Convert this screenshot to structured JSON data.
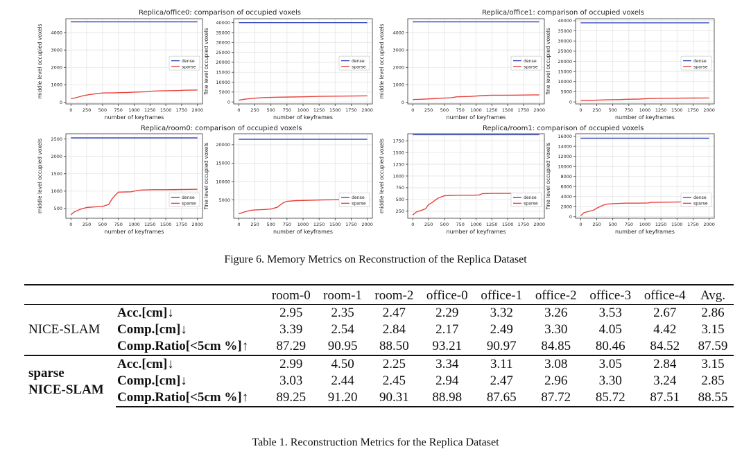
{
  "figure": {
    "caption": "Figure 6. Memory Metrics on Reconstruction of the Replica Dataset",
    "xlabel": "number of keyframes",
    "legend": {
      "dense": "dense",
      "sparse": "sparse"
    },
    "colors": {
      "dense": "#3b4cc0",
      "sparse": "#e8413b"
    },
    "panel_titles": [
      "Replica/office0: comparison of occupied voxels",
      "Replica/office1: comparison of occupied voxels",
      "Replica/room0: comparison of occupied voxels",
      "Replica/room1: comparison of occupied voxels"
    ]
  },
  "chart_data": [
    {
      "type": "line",
      "panel": "office0",
      "ylabel": "middle level occupied voxels",
      "xlim": [
        -80,
        2080
      ],
      "ylim": [
        -100,
        4800
      ],
      "xticks": [
        0,
        250,
        500,
        750,
        1000,
        1250,
        1500,
        1750,
        2000
      ],
      "yticks": [
        0,
        1000,
        2000,
        3000,
        4000
      ],
      "legend_position": "center-right",
      "grid": true,
      "series": [
        {
          "name": "dense",
          "x": [
            0,
            2000
          ],
          "y": [
            4620,
            4620
          ]
        },
        {
          "name": "sparse",
          "x": [
            0,
            80,
            200,
            300,
            420,
            500,
            700,
            900,
            1000,
            1200,
            1300,
            1500,
            1700,
            1800,
            2000
          ],
          "y": [
            200,
            260,
            380,
            440,
            500,
            530,
            540,
            560,
            580,
            600,
            640,
            660,
            670,
            690,
            700
          ]
        }
      ]
    },
    {
      "type": "line",
      "panel": "office0",
      "ylabel": "fine level occupied voxels",
      "xlim": [
        -80,
        2080
      ],
      "ylim": [
        -1000,
        42000
      ],
      "xticks": [
        0,
        250,
        500,
        750,
        1000,
        1250,
        1500,
        1750,
        2000
      ],
      "yticks": [
        0,
        5000,
        10000,
        15000,
        20000,
        25000,
        30000,
        35000,
        40000
      ],
      "legend_position": "center-right",
      "grid": true,
      "series": [
        {
          "name": "dense",
          "x": [
            0,
            2000
          ],
          "y": [
            40000,
            40000
          ]
        },
        {
          "name": "sparse",
          "x": [
            0,
            100,
            250,
            400,
            600,
            800,
            1000,
            1250,
            1500,
            1750,
            2000
          ],
          "y": [
            900,
            1400,
            1900,
            2200,
            2400,
            2500,
            2600,
            2800,
            2900,
            3000,
            3100
          ]
        }
      ]
    },
    {
      "type": "line",
      "panel": "office1",
      "ylabel": "middle level occupied voxels",
      "xlim": [
        -80,
        2080
      ],
      "ylim": [
        -100,
        4800
      ],
      "xticks": [
        0,
        250,
        500,
        750,
        1000,
        1250,
        1500,
        1750,
        2000
      ],
      "yticks": [
        0,
        1000,
        2000,
        3000,
        4000
      ],
      "legend_position": "center-right",
      "grid": true,
      "series": [
        {
          "name": "dense",
          "x": [
            0,
            2000
          ],
          "y": [
            4620,
            4620
          ]
        },
        {
          "name": "sparse",
          "x": [
            0,
            150,
            300,
            450,
            600,
            700,
            900,
            1100,
            1250,
            1500,
            1750,
            2000
          ],
          "y": [
            150,
            170,
            200,
            230,
            250,
            310,
            330,
            380,
            400,
            400,
            410,
            420
          ]
        }
      ]
    },
    {
      "type": "line",
      "panel": "office1",
      "ylabel": "fine level occupied voxels",
      "xlim": [
        -80,
        2080
      ],
      "ylim": [
        -1000,
        41000
      ],
      "xticks": [
        0,
        250,
        500,
        750,
        1000,
        1250,
        1500,
        1750,
        2000
      ],
      "yticks": [
        0,
        5000,
        10000,
        15000,
        20000,
        25000,
        30000,
        35000,
        40000
      ],
      "legend_position": "center-right",
      "grid": true,
      "series": [
        {
          "name": "dense",
          "x": [
            0,
            2000
          ],
          "y": [
            39000,
            39000
          ]
        },
        {
          "name": "sparse",
          "x": [
            0,
            200,
            400,
            600,
            700,
            900,
            1100,
            1300,
            1500,
            1750,
            2000
          ],
          "y": [
            600,
            800,
            1000,
            1100,
            1300,
            1400,
            1700,
            1800,
            1850,
            1900,
            1950
          ]
        }
      ]
    },
    {
      "type": "line",
      "panel": "room0",
      "ylabel": "middle level occupied voxels",
      "xlim": [
        -80,
        2080
      ],
      "ylim": [
        220,
        2650
      ],
      "xticks": [
        0,
        250,
        500,
        750,
        1000,
        1250,
        1500,
        1750,
        2000
      ],
      "yticks": [
        500,
        1000,
        1500,
        2000,
        2500
      ],
      "legend_position": "lower-right",
      "grid": true,
      "series": [
        {
          "name": "dense",
          "x": [
            0,
            2000
          ],
          "y": [
            2530,
            2530
          ]
        },
        {
          "name": "sparse",
          "x": [
            0,
            50,
            150,
            250,
            400,
            500,
            600,
            650,
            700,
            750,
            950,
            1000,
            1100,
            1300,
            1500,
            1700,
            1900,
            2000
          ],
          "y": [
            320,
            400,
            480,
            530,
            550,
            560,
            620,
            780,
            880,
            970,
            980,
            1000,
            1030,
            1040,
            1040,
            1045,
            1050,
            1055
          ]
        }
      ]
    },
    {
      "type": "line",
      "panel": "room0",
      "ylabel": "fine level occupied voxels",
      "xlim": [
        -80,
        2080
      ],
      "ylim": [
        0,
        23000
      ],
      "xticks": [
        0,
        250,
        500,
        750,
        1000,
        1250,
        1500,
        1750,
        2000
      ],
      "yticks": [
        5000,
        10000,
        15000,
        20000
      ],
      "legend_position": "lower-right",
      "grid": true,
      "series": [
        {
          "name": "dense",
          "x": [
            0,
            2000
          ],
          "y": [
            21500,
            21500
          ]
        },
        {
          "name": "sparse",
          "x": [
            0,
            100,
            200,
            400,
            500,
            600,
            650,
            700,
            750,
            900,
            1100,
            1300,
            1600,
            2000
          ],
          "y": [
            1200,
            1800,
            2200,
            2400,
            2500,
            3000,
            3700,
            4300,
            4600,
            4800,
            4900,
            5000,
            5050,
            5100
          ]
        }
      ]
    },
    {
      "type": "line",
      "panel": "room1",
      "ylabel": "middle level occupied voxels",
      "xlim": [
        -80,
        2080
      ],
      "ylim": [
        100,
        1900
      ],
      "xticks": [
        0,
        250,
        500,
        750,
        1000,
        1250,
        1500,
        1750,
        2000
      ],
      "yticks": [
        250,
        500,
        750,
        1000,
        1250,
        1500,
        1750
      ],
      "legend_position": "lower-right",
      "grid": true,
      "series": [
        {
          "name": "dense",
          "x": [
            0,
            2000
          ],
          "y": [
            1880,
            1880
          ]
        },
        {
          "name": "sparse",
          "x": [
            0,
            50,
            200,
            250,
            300,
            350,
            400,
            500,
            700,
            900,
            1050,
            1100,
            1300,
            1600,
            2000
          ],
          "y": [
            170,
            230,
            300,
            390,
            430,
            480,
            530,
            580,
            590,
            590,
            595,
            625,
            630,
            630,
            635
          ]
        }
      ]
    },
    {
      "type": "line",
      "panel": "room1",
      "ylabel": "fine level occupied voxels",
      "xlim": [
        -80,
        2080
      ],
      "ylim": [
        -300,
        16500
      ],
      "xticks": [
        0,
        250,
        500,
        750,
        1000,
        1250,
        1500,
        1750,
        2000
      ],
      "yticks": [
        0,
        2000,
        4000,
        6000,
        8000,
        10000,
        12000,
        14000,
        16000
      ],
      "legend_position": "lower-right",
      "grid": true,
      "series": [
        {
          "name": "dense",
          "x": [
            0,
            2000
          ],
          "y": [
            15600,
            15600
          ]
        },
        {
          "name": "sparse",
          "x": [
            0,
            50,
            200,
            250,
            300,
            350,
            400,
            500,
            700,
            900,
            1050,
            1100,
            1300,
            1600,
            2000
          ],
          "y": [
            200,
            800,
            1300,
            1700,
            2000,
            2300,
            2500,
            2600,
            2700,
            2700,
            2750,
            2850,
            2900,
            2950,
            3000
          ]
        }
      ]
    }
  ],
  "table": {
    "caption": "Table 1. Reconstruction Metrics for the Replica Dataset",
    "columns": [
      "room-0",
      "room-1",
      "room-2",
      "office-0",
      "office-1",
      "office-2",
      "office-3",
      "office-4",
      "Avg."
    ],
    "groups": [
      {
        "name_lines": [
          "NICE-SLAM"
        ],
        "rows": [
          {
            "metric": "Acc.[cm]↓",
            "values": [
              "2.95",
              "2.35",
              "2.47",
              "2.29",
              "3.32",
              "3.26",
              "3.53",
              "2.67",
              "2.86"
            ]
          },
          {
            "metric": "Comp.[cm]↓",
            "values": [
              "3.39",
              "2.54",
              "2.84",
              "2.17",
              "2.49",
              "3.30",
              "4.05",
              "4.42",
              "3.15"
            ]
          },
          {
            "metric": "Comp.Ratio[<5cm %]↑",
            "values": [
              "87.29",
              "90.95",
              "88.50",
              "93.21",
              "90.97",
              "84.85",
              "80.46",
              "84.52",
              "87.59"
            ]
          }
        ]
      },
      {
        "name_lines": [
          "sparse",
          "NICE-SLAM"
        ],
        "rows": [
          {
            "metric": "Acc.[cm]↓",
            "values": [
              "2.99",
              "4.50",
              "2.25",
              "3.34",
              "3.11",
              "3.08",
              "3.05",
              "2.84",
              "3.15"
            ]
          },
          {
            "metric": "Comp.[cm]↓",
            "values": [
              "3.03",
              "2.44",
              "2.45",
              "2.94",
              "2.47",
              "2.96",
              "3.30",
              "3.24",
              "2.85"
            ]
          },
          {
            "metric": "Comp.Ratio[<5cm %]↑",
            "values": [
              "89.25",
              "91.20",
              "90.31",
              "88.98",
              "87.65",
              "87.72",
              "85.72",
              "87.51",
              "88.55"
            ]
          }
        ]
      }
    ]
  }
}
